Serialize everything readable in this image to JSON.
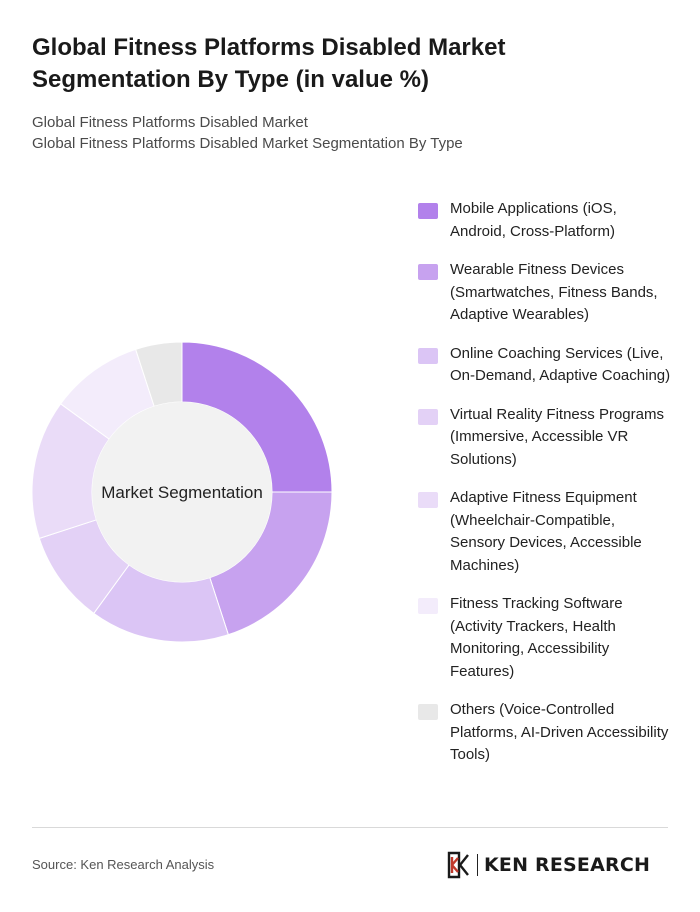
{
  "header": {
    "title": "Global Fitness Platforms Disabled Market Segmentation By Type (in value %)",
    "subtitle_line1": "Global Fitness Platforms Disabled Market",
    "subtitle_line2": "Global Fitness Platforms Disabled Market Segmentation By Type"
  },
  "chart_data": {
    "type": "pie",
    "center_label": "Market Segmentation",
    "categories": [
      "Mobile Applications (iOS, Android, Cross-Platform)",
      "Wearable Fitness Devices (Smartwatches, Fitness Bands, Adaptive Wearables)",
      "Online Coaching Services (Live, On-Demand, Adaptive Coaching)",
      "Virtual Reality Fitness Programs (Immersive, Accessible VR Solutions)",
      "Adaptive Fitness Equipment (Wheelchair-Compatible, Sensory Devices, Accessible Machines)",
      "Fitness Tracking Software (Activity Trackers, Health Monitoring, Accessibility Features)",
      "Others (Voice-Controlled Platforms, AI-Driven Accessibility Tools)"
    ],
    "values": [
      25,
      20,
      15,
      10,
      15,
      10,
      5
    ],
    "colors": [
      "#b281eb",
      "#c7a2ef",
      "#dbc5f5",
      "#e3d1f6",
      "#eadcf8",
      "#f3ecfb",
      "#e8e8e8"
    ],
    "legend_position": "right"
  },
  "footer": {
    "source": "Source: Ken Research Analysis",
    "logo_text": "KEN RESEARCH"
  }
}
